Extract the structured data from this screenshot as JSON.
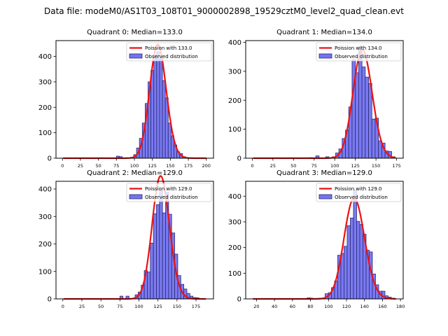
{
  "figure": {
    "suptitle": "Data file: modeM0/AS1T03_108T01_9000002898_19529cztM0_level2_quad_clean.evt"
  },
  "colors": {
    "bar_fill": "#7373f2",
    "bar_edge": "#2a2a6e",
    "curve": "#ee1111"
  },
  "chart_data": [
    {
      "type": "bar",
      "title": "Quadrant 0: Median=133.0",
      "xlim": [
        -9,
        210
      ],
      "ylim": [
        0,
        462
      ],
      "xticks": [
        0,
        25,
        50,
        75,
        100,
        125,
        150,
        175,
        200
      ],
      "yticks": [
        0,
        100,
        200,
        300,
        400
      ],
      "legend": {
        "position": "top-right",
        "entries": [
          "Poission with 133.0",
          "Observed distribution"
        ]
      },
      "poisson_mean": 133.0,
      "bin_width": 4,
      "bins": [
        {
          "x": 77,
          "y": 8
        },
        {
          "x": 81,
          "y": 6
        },
        {
          "x": 97,
          "y": 4
        },
        {
          "x": 101,
          "y": 14
        },
        {
          "x": 105,
          "y": 40
        },
        {
          "x": 109,
          "y": 78
        },
        {
          "x": 113,
          "y": 138
        },
        {
          "x": 117,
          "y": 215
        },
        {
          "x": 121,
          "y": 300
        },
        {
          "x": 125,
          "y": 345
        },
        {
          "x": 129,
          "y": 405
        },
        {
          "x": 133,
          "y": 418
        },
        {
          "x": 137,
          "y": 390
        },
        {
          "x": 141,
          "y": 305
        },
        {
          "x": 145,
          "y": 237
        },
        {
          "x": 149,
          "y": 138
        },
        {
          "x": 153,
          "y": 88
        },
        {
          "x": 157,
          "y": 52
        },
        {
          "x": 161,
          "y": 25
        },
        {
          "x": 165,
          "y": 18
        },
        {
          "x": 169,
          "y": 6
        },
        {
          "x": 173,
          "y": 3
        }
      ],
      "curve_range": [
        1,
        200
      ]
    },
    {
      "type": "bar",
      "title": "Quadrant 1: Median=134.0",
      "xlim": [
        -8,
        183
      ],
      "ylim": [
        0,
        406
      ],
      "xticks": [
        0,
        25,
        50,
        75,
        100,
        125,
        150,
        175
      ],
      "yticks": [
        0,
        100,
        200,
        300,
        400
      ],
      "legend": {
        "position": "top-right",
        "entries": [
          "Poission with 134.0",
          "Observed distribution"
        ]
      },
      "poisson_mean": 134.0,
      "bin_width": 4,
      "bins": [
        {
          "x": 71,
          "y": 2
        },
        {
          "x": 79,
          "y": 8
        },
        {
          "x": 91,
          "y": 5
        },
        {
          "x": 99,
          "y": 5
        },
        {
          "x": 103,
          "y": 18
        },
        {
          "x": 107,
          "y": 32
        },
        {
          "x": 111,
          "y": 68
        },
        {
          "x": 115,
          "y": 97
        },
        {
          "x": 119,
          "y": 177
        },
        {
          "x": 123,
          "y": 340
        },
        {
          "x": 127,
          "y": 295
        },
        {
          "x": 131,
          "y": 385
        },
        {
          "x": 135,
          "y": 315
        },
        {
          "x": 139,
          "y": 280
        },
        {
          "x": 143,
          "y": 258
        },
        {
          "x": 147,
          "y": 135
        },
        {
          "x": 151,
          "y": 138
        },
        {
          "x": 155,
          "y": 60
        },
        {
          "x": 159,
          "y": 52
        },
        {
          "x": 163,
          "y": 25
        },
        {
          "x": 167,
          "y": 23
        },
        {
          "x": 171,
          "y": 5
        }
      ],
      "curve_range": [
        1,
        174
      ]
    },
    {
      "type": "bar",
      "title": "Quadrant 2: Median=129.0",
      "xlim": [
        -9,
        198
      ],
      "ylim": [
        0,
        428
      ],
      "xticks": [
        0,
        25,
        50,
        75,
        100,
        125,
        150,
        175
      ],
      "yticks": [
        0,
        100,
        200,
        300,
        400
      ],
      "legend": {
        "position": "top-right",
        "entries": [
          "Poission with 129.0",
          "Observed distribution"
        ]
      },
      "poisson_mean": 129.0,
      "bin_width": 4,
      "bins": [
        {
          "x": 77,
          "y": 10
        },
        {
          "x": 85,
          "y": 10
        },
        {
          "x": 97,
          "y": 15
        },
        {
          "x": 101,
          "y": 25
        },
        {
          "x": 105,
          "y": 50
        },
        {
          "x": 109,
          "y": 103
        },
        {
          "x": 113,
          "y": 98
        },
        {
          "x": 117,
          "y": 203
        },
        {
          "x": 121,
          "y": 310
        },
        {
          "x": 125,
          "y": 343
        },
        {
          "x": 129,
          "y": 393
        },
        {
          "x": 133,
          "y": 313
        },
        {
          "x": 137,
          "y": 388
        },
        {
          "x": 141,
          "y": 308
        },
        {
          "x": 145,
          "y": 240
        },
        {
          "x": 149,
          "y": 163
        },
        {
          "x": 153,
          "y": 85
        },
        {
          "x": 157,
          "y": 53
        },
        {
          "x": 161,
          "y": 36
        },
        {
          "x": 165,
          "y": 20
        },
        {
          "x": 169,
          "y": 10
        },
        {
          "x": 173,
          "y": 5
        },
        {
          "x": 177,
          "y": 4
        }
      ],
      "curve_range": [
        1,
        188
      ]
    },
    {
      "type": "bar",
      "title": "Quadrant 3: Median=129.0",
      "xlim": [
        8,
        183
      ],
      "ylim": [
        0,
        458
      ],
      "xticks": [
        20,
        40,
        60,
        80,
        100,
        120,
        140,
        160,
        180
      ],
      "yticks": [
        0,
        100,
        200,
        300,
        400
      ],
      "legend": {
        "position": "top-right",
        "entries": [
          "Poission with 129.0",
          "Observed distribution"
        ]
      },
      "poisson_mean": 129.0,
      "bin_width": 3.5,
      "bins": [
        {
          "x": 78,
          "y": 4
        },
        {
          "x": 81,
          "y": 3
        },
        {
          "x": 91,
          "y": 3
        },
        {
          "x": 98,
          "y": 20
        },
        {
          "x": 101.5,
          "y": 24
        },
        {
          "x": 105,
          "y": 44
        },
        {
          "x": 108.5,
          "y": 70
        },
        {
          "x": 112,
          "y": 170
        },
        {
          "x": 115.5,
          "y": 177
        },
        {
          "x": 119,
          "y": 205
        },
        {
          "x": 122.5,
          "y": 285
        },
        {
          "x": 126,
          "y": 315
        },
        {
          "x": 129.5,
          "y": 425
        },
        {
          "x": 133,
          "y": 302
        },
        {
          "x": 136.5,
          "y": 290
        },
        {
          "x": 140,
          "y": 252
        },
        {
          "x": 143.5,
          "y": 190
        },
        {
          "x": 147,
          "y": 183
        },
        {
          "x": 150.5,
          "y": 97
        },
        {
          "x": 154,
          "y": 55
        },
        {
          "x": 157.5,
          "y": 30
        },
        {
          "x": 161,
          "y": 30
        },
        {
          "x": 164.5,
          "y": 12
        },
        {
          "x": 168,
          "y": 7
        },
        {
          "x": 171.5,
          "y": 3
        }
      ],
      "curve_range": [
        16,
        175
      ]
    }
  ]
}
